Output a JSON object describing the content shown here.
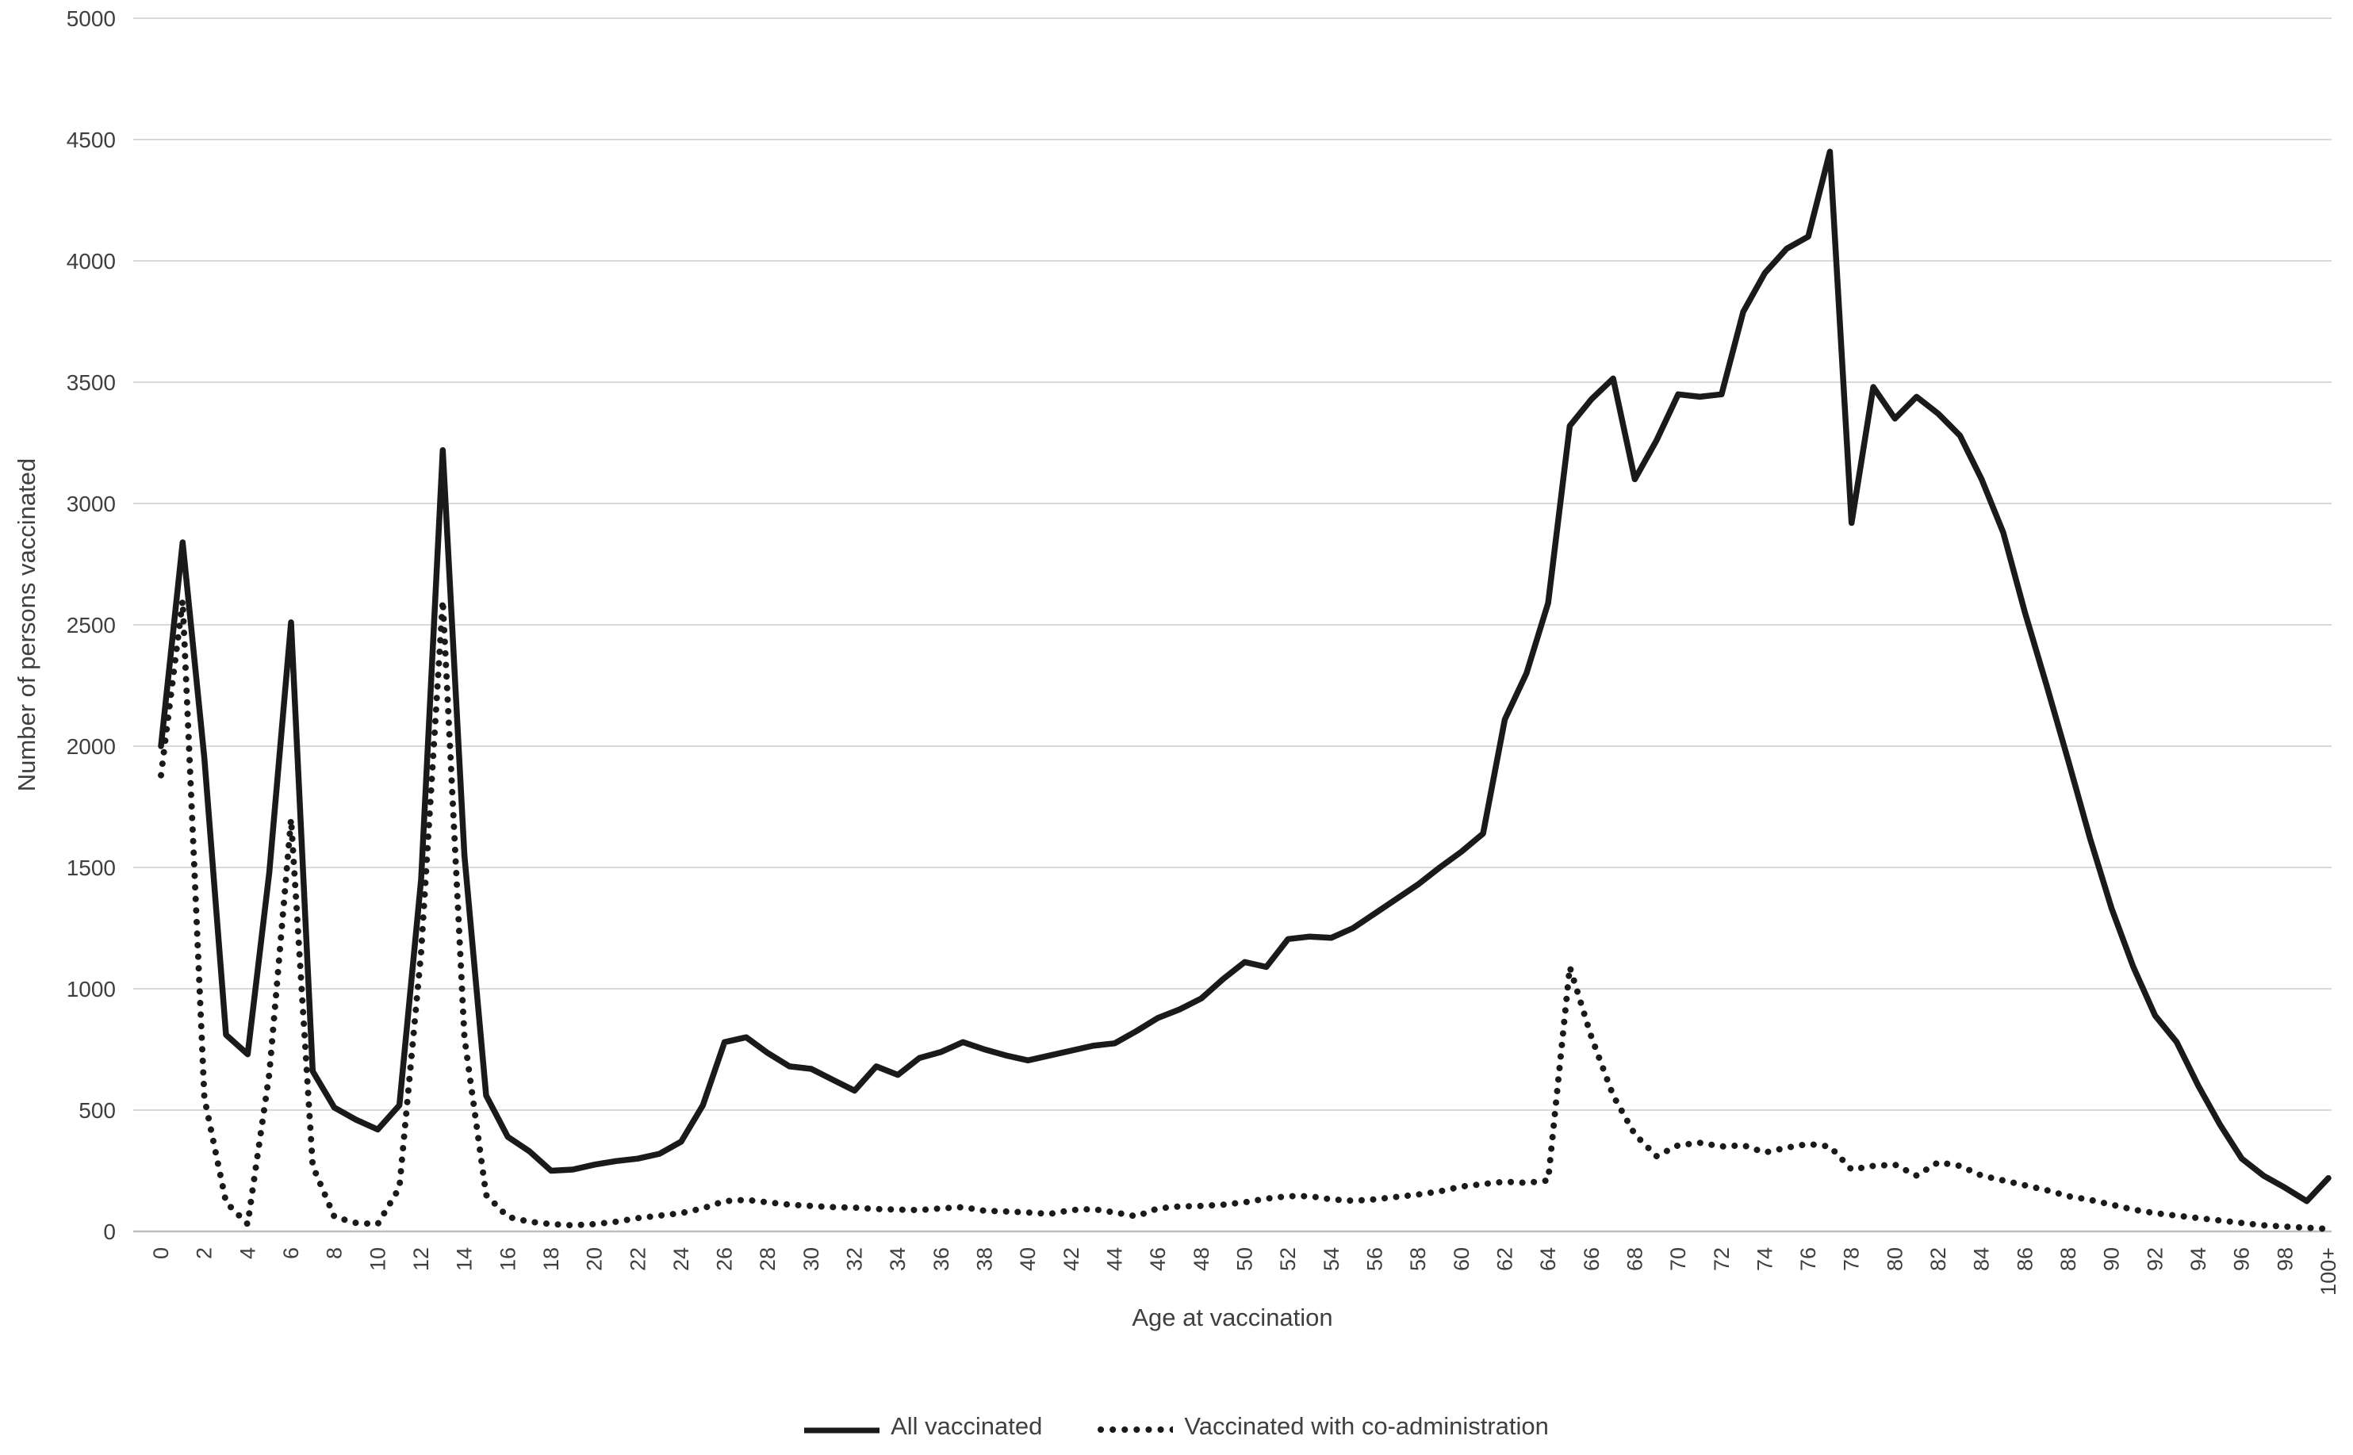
{
  "chart_data": {
    "type": "line",
    "title": "",
    "xlabel": "Age at vaccination",
    "ylabel": "Number of persons vaccinated",
    "categories_note": "ages 0 through 100+, x tick labels every 2 years",
    "x_tick_labels": [
      "0",
      "2",
      "4",
      "6",
      "8",
      "10",
      "12",
      "14",
      "16",
      "18",
      "20",
      "22",
      "24",
      "26",
      "28",
      "30",
      "32",
      "34",
      "36",
      "38",
      "40",
      "42",
      "44",
      "46",
      "48",
      "50",
      "52",
      "54",
      "56",
      "58",
      "60",
      "62",
      "64",
      "66",
      "68",
      "70",
      "72",
      "74",
      "76",
      "78",
      "80",
      "82",
      "84",
      "86",
      "88",
      "90",
      "92",
      "94",
      "96",
      "98",
      "100+"
    ],
    "y_tick_labels": [
      "0",
      "500",
      "1000",
      "1500",
      "2000",
      "2500",
      "3000",
      "3500",
      "4000",
      "4500",
      "5000"
    ],
    "ylim": [
      0,
      5000
    ],
    "ytick_step": 500,
    "grid": true,
    "legend_position": "bottom",
    "series": [
      {
        "name": "All vaccinated",
        "style": "solid",
        "values": [
          2000,
          2840,
          1950,
          810,
          730,
          1480,
          2510,
          660,
          510,
          460,
          420,
          520,
          1450,
          3220,
          1550,
          560,
          390,
          330,
          250,
          255,
          275,
          290,
          300,
          320,
          370,
          520,
          780,
          800,
          735,
          680,
          670,
          625,
          580,
          680,
          645,
          715,
          740,
          780,
          750,
          725,
          705,
          725,
          745,
          765,
          775,
          825,
          880,
          915,
          960,
          1040,
          1110,
          1090,
          1205,
          1215,
          1210,
          1250,
          1310,
          1370,
          1430,
          1500,
          1565,
          1640,
          2110,
          2300,
          2590,
          3320,
          3430,
          3515,
          3100,
          3260,
          3450,
          3440,
          3450,
          3790,
          3950,
          4050,
          4100,
          4450,
          2920,
          3480,
          3350,
          3440,
          3370,
          3280,
          3100,
          2880,
          2550,
          2250,
          1940,
          1620,
          1330,
          1090,
          890,
          780,
          600,
          440,
          300,
          230,
          180,
          125,
          220
        ]
      },
      {
        "name": "Vaccinated with co-administration",
        "style": "dotted",
        "values": [
          1880,
          2600,
          550,
          120,
          30,
          650,
          1700,
          270,
          60,
          35,
          30,
          180,
          1150,
          2600,
          800,
          150,
          60,
          40,
          30,
          25,
          30,
          40,
          55,
          65,
          75,
          95,
          125,
          130,
          120,
          110,
          105,
          100,
          98,
          92,
          90,
          88,
          95,
          100,
          85,
          82,
          78,
          72,
          88,
          92,
          78,
          62,
          95,
          103,
          105,
          110,
          120,
          135,
          145,
          145,
          132,
          126,
          132,
          142,
          152,
          165,
          185,
          195,
          205,
          200,
          210,
          1090,
          800,
          560,
          400,
          310,
          355,
          365,
          350,
          355,
          325,
          345,
          360,
          350,
          255,
          270,
          275,
          230,
          285,
          270,
          230,
          210,
          190,
          170,
          145,
          130,
          110,
          90,
          75,
          65,
          55,
          45,
          35,
          25,
          20,
          15,
          10
        ]
      }
    ]
  },
  "axes": {
    "x_title": "Age at vaccination",
    "y_title": "Number of persons vaccinated"
  },
  "legend": {
    "item1": "All vaccinated",
    "item2": "Vaccinated with co-administration"
  },
  "colors": {
    "line": "#1a1a1a",
    "grid": "#d9d9d9",
    "axis_line": "#bfbfbf",
    "text": "#3f3f3f",
    "background": "#ffffff"
  }
}
